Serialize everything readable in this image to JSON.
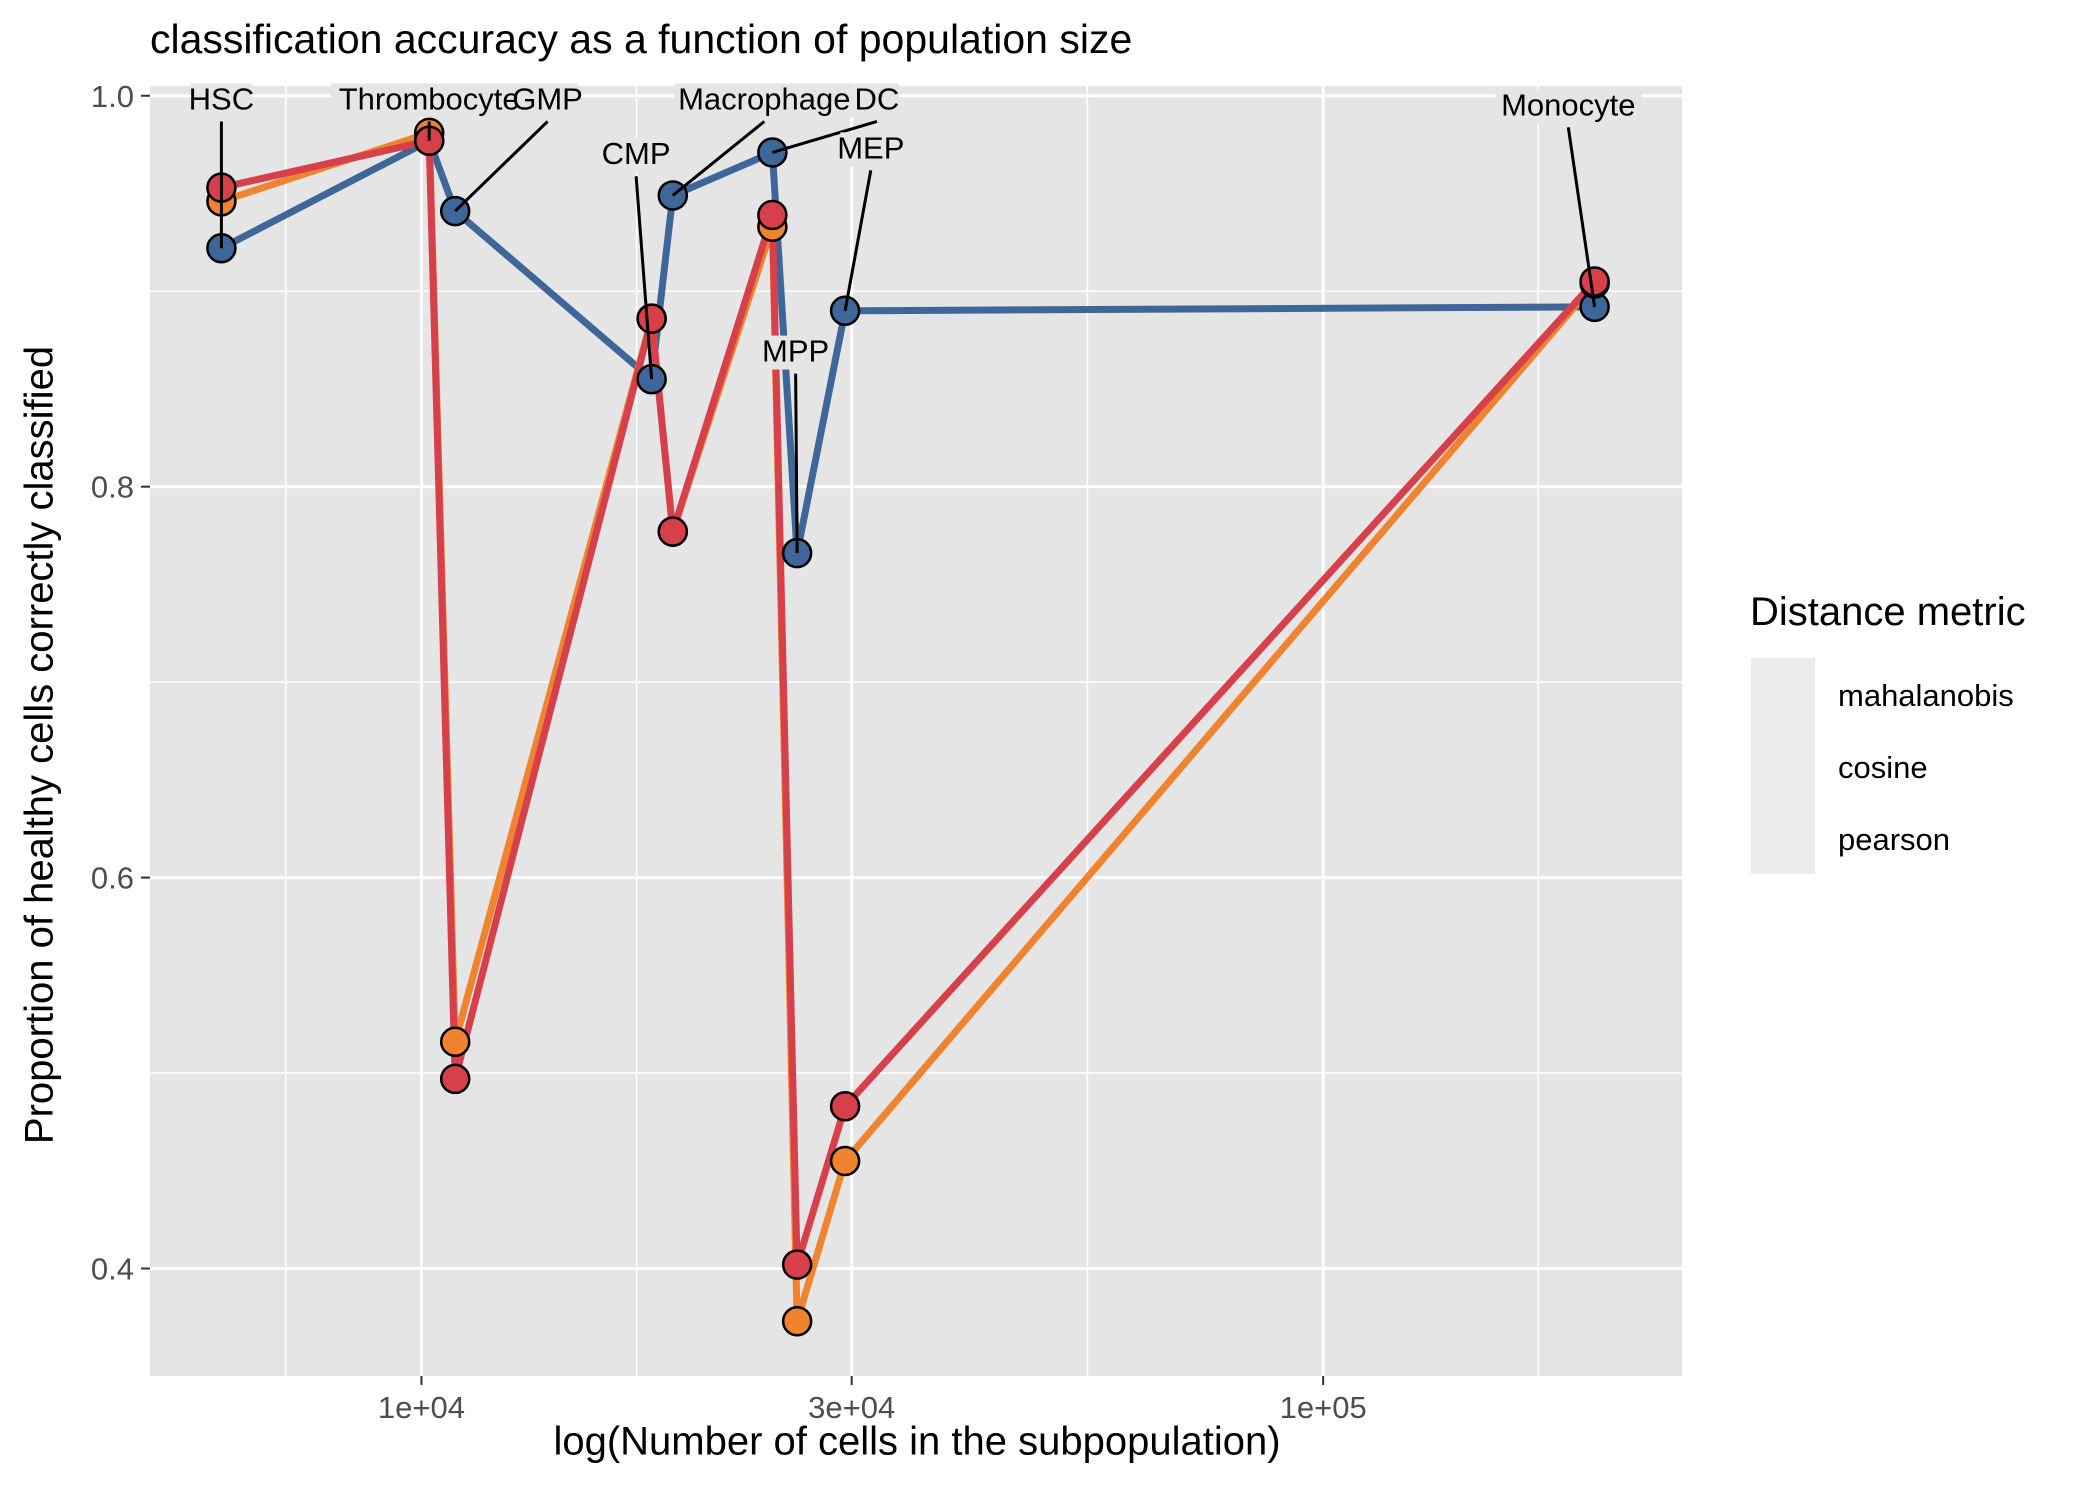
{
  "title": "classification accuracy as a function of population size",
  "colors": {
    "mahalanobis": "#3f6699",
    "cosine": "#f08330",
    "pearson": "#d6404a",
    "panel": "#e5e5e5",
    "grid": "#ffffff"
  },
  "legend": {
    "title": "Distance metric",
    "entries": [
      "mahalanobis",
      "cosine",
      "pearson"
    ]
  },
  "chart_data": {
    "type": "line",
    "title": "classification accuracy as a function of population size",
    "xlabel": "log(Number of cells in the subpopulation)",
    "ylabel": "Proportion of healthy cells correctly classified",
    "x_scale": "log10",
    "xlim": [
      5000,
      250000
    ],
    "ylim": [
      0.345,
      1.005
    ],
    "x_ticks": [
      10000,
      30000,
      100000
    ],
    "x_tick_labels": [
      "1e+04",
      "3e+04",
      "1e+05"
    ],
    "y_ticks": [
      0.4,
      0.6,
      0.8,
      1.0
    ],
    "y_tick_labels": [
      "0.4",
      "0.6",
      "0.8",
      "1.0"
    ],
    "x": [
      6000,
      10200,
      10900,
      18000,
      19000,
      24500,
      26100,
      29500,
      200000
    ],
    "categories": [
      "HSC",
      "Thrombocyte",
      "GMP",
      "CMP",
      "Macrophage",
      "DC",
      "MPP",
      "MEP",
      "Monocyte"
    ],
    "series": [
      {
        "name": "mahalanobis",
        "values": [
          0.922,
          0.977,
          0.941,
          0.855,
          0.949,
          0.971,
          0.766,
          0.89,
          0.892
        ]
      },
      {
        "name": "cosine",
        "values": [
          0.946,
          0.981,
          0.516,
          0.886,
          0.777,
          0.933,
          0.373,
          0.455,
          0.904
        ]
      },
      {
        "name": "pearson",
        "values": [
          0.953,
          0.977,
          0.497,
          0.886,
          0.777,
          0.939,
          0.402,
          0.483,
          0.905
        ]
      }
    ],
    "annotations": [
      {
        "text": "HSC",
        "x": 6000,
        "y": 0.922,
        "label_x": 6000,
        "label_y": 0.993
      },
      {
        "text": "Thrombocyte",
        "x": 10200,
        "y": 0.977,
        "label_x": 10200,
        "label_y": 0.993
      },
      {
        "text": "GMP",
        "x": 10900,
        "y": 0.941,
        "label_x": 13800,
        "label_y": 0.993
      },
      {
        "text": "CMP",
        "x": 18000,
        "y": 0.855,
        "label_x": 17300,
        "label_y": 0.965
      },
      {
        "text": "Macrophage",
        "x": 19000,
        "y": 0.949,
        "label_x": 24000,
        "label_y": 0.993
      },
      {
        "text": "DC",
        "x": 24500,
        "y": 0.971,
        "label_x": 32000,
        "label_y": 0.993
      },
      {
        "text": "MPP",
        "x": 26100,
        "y": 0.766,
        "label_x": 26000,
        "label_y": 0.864
      },
      {
        "text": "MEP",
        "x": 29500,
        "y": 0.89,
        "label_x": 31500,
        "label_y": 0.968
      },
      {
        "text": "Monocyte",
        "x": 200000,
        "y": 0.892,
        "label_x": 187000,
        "label_y": 0.99
      }
    ],
    "legend_position": "right",
    "grid": true
  }
}
